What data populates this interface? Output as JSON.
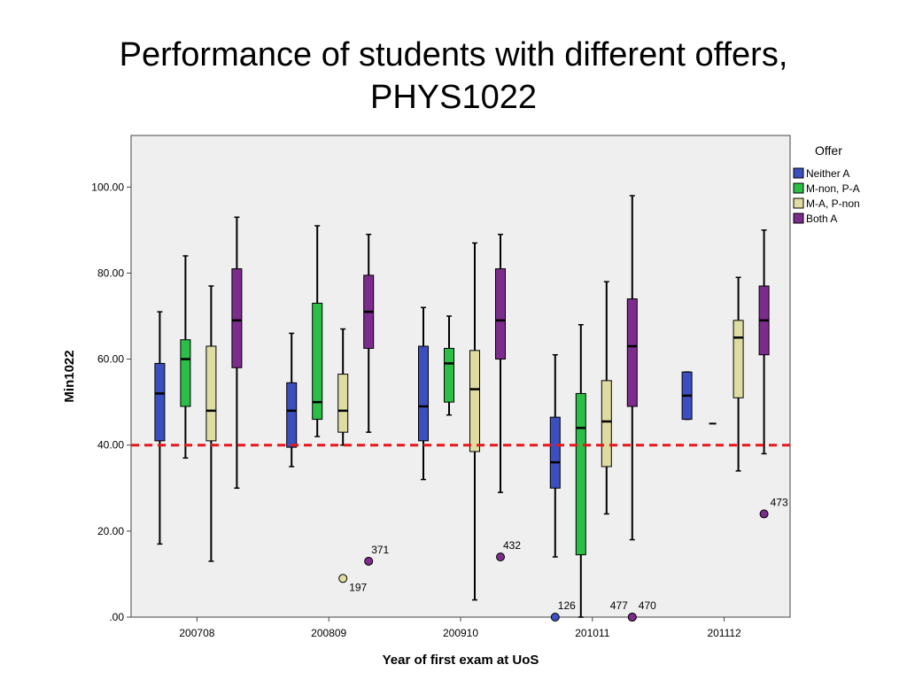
{
  "slide": {
    "title_line1": "Performance of students with different offers,",
    "title_line2": "PHYS1022"
  },
  "chart_data": {
    "type": "boxplot",
    "xlabel": "Year of first exam at UoS",
    "ylabel": "Min1022",
    "ylim": [
      0,
      112
    ],
    "y_ticks": [
      0,
      20,
      40,
      60,
      80,
      100
    ],
    "y_tick_labels": [
      ".00",
      "20.00",
      "40.00",
      "60.00",
      "80.00",
      "100.00"
    ],
    "categories": [
      "200708",
      "200809",
      "200910",
      "201011",
      "201112"
    ],
    "reference_line": {
      "y": 40,
      "color": "#e8161a",
      "style": "dashed"
    },
    "background": "#efefef",
    "grid": false,
    "legend": {
      "title": "Offer",
      "placement": "right",
      "entries": [
        "Neither A",
        "M-non, P-A",
        "M-A, P-non",
        "Both A"
      ]
    },
    "series": [
      {
        "name": "Neither A",
        "color": "#3b4fc0",
        "boxes": [
          {
            "min": 17,
            "q1": 41,
            "median": 52,
            "q3": 59,
            "max": 71
          },
          {
            "min": 35,
            "q1": 39.5,
            "median": 48,
            "q3": 54.5,
            "max": 66
          },
          {
            "min": 32,
            "q1": 41,
            "median": 49,
            "q3": 63,
            "max": 72
          },
          {
            "min": 14,
            "q1": 30,
            "median": 36,
            "q3": 46.5,
            "max": 61
          },
          {
            "min": 46,
            "q1": 46,
            "median": 51.5,
            "q3": 57,
            "max": 57
          }
        ]
      },
      {
        "name": "M-non, P-A",
        "color": "#2bbf48",
        "boxes": [
          {
            "min": 37,
            "q1": 49,
            "median": 60,
            "q3": 64.5,
            "max": 84
          },
          {
            "min": 42,
            "q1": 46,
            "median": 50,
            "q3": 73,
            "max": 91
          },
          {
            "min": 47,
            "q1": 50,
            "median": 59,
            "q3": 62.5,
            "max": 70
          },
          {
            "min": 0,
            "q1": 14.5,
            "median": 44,
            "q3": 52,
            "max": 68
          },
          null
        ]
      },
      {
        "name": "M-A, P-non",
        "color": "#dedca0",
        "boxes": [
          {
            "min": 13,
            "q1": 41,
            "median": 48,
            "q3": 63,
            "max": 77
          },
          {
            "min": 40,
            "q1": 43,
            "median": 48,
            "q3": 56.5,
            "max": 67
          },
          {
            "min": 4,
            "q1": 38.5,
            "median": 53,
            "q3": 62,
            "max": 87
          },
          {
            "min": 24,
            "q1": 35,
            "median": 45.5,
            "q3": 55,
            "max": 78
          },
          {
            "min": 34,
            "q1": 51,
            "median": 65,
            "q3": 69,
            "max": 79
          }
        ]
      },
      {
        "name": "Both A",
        "color": "#7c2c8c",
        "boxes": [
          {
            "min": 30,
            "q1": 58,
            "median": 69,
            "q3": 81,
            "max": 93
          },
          {
            "min": 43,
            "q1": 62.5,
            "median": 71,
            "q3": 79.5,
            "max": 89
          },
          {
            "min": 29,
            "q1": 60,
            "median": 69,
            "q3": 81,
            "max": 89
          },
          {
            "min": 18,
            "q1": 49,
            "median": 63,
            "q3": 74,
            "max": 98
          },
          {
            "min": 38,
            "q1": 61,
            "median": 69,
            "q3": 77,
            "max": 90
          }
        ]
      }
    ],
    "single_values": [
      {
        "category": "201112",
        "series": "M-non, P-A",
        "y": 45
      }
    ],
    "outliers": [
      {
        "category": "200809",
        "series": "M-A, P-non",
        "y": 9,
        "label": "197"
      },
      {
        "category": "200809",
        "series": "Both A",
        "y": 13,
        "label": "371"
      },
      {
        "category": "200910",
        "series": "Both A",
        "y": 14,
        "label": "432"
      },
      {
        "category": "201011",
        "series": "Neither A",
        "y": 0,
        "label": "126"
      },
      {
        "category": "201011",
        "series": "Both A",
        "y": 0,
        "label": "477"
      },
      {
        "category": "201011",
        "series": "Both A",
        "y": 0,
        "label": "470"
      },
      {
        "category": "201112",
        "series": "Both A",
        "y": 24,
        "label": "473"
      }
    ]
  }
}
